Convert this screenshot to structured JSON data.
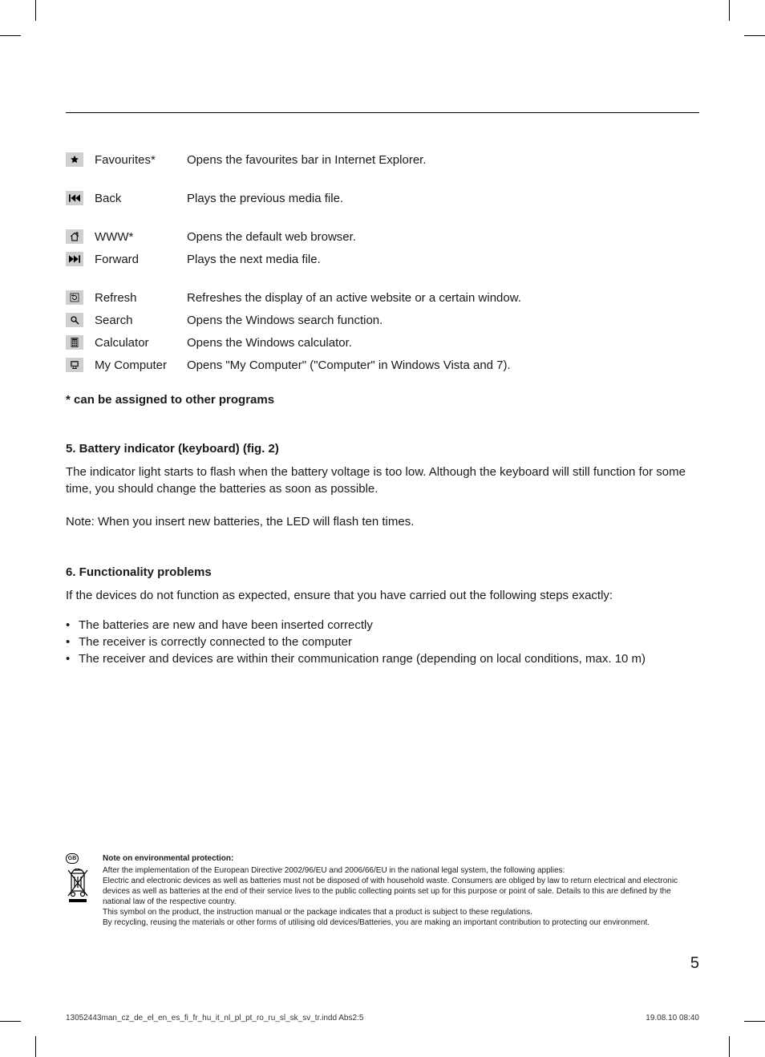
{
  "rows": [
    {
      "icon": "star",
      "label": "Favourites*",
      "desc": "Opens the favourites bar in Internet Explorer.",
      "gap": true
    },
    {
      "icon": "prev",
      "label": "Back",
      "desc": "Plays the previous media file.",
      "gap": true
    },
    {
      "icon": "home",
      "label": "WWW*",
      "desc": "Opens the default web browser.",
      "gap": false
    },
    {
      "icon": "next",
      "label": "Forward",
      "desc": "Plays the next media file.",
      "gap": true
    },
    {
      "icon": "refresh",
      "label": "Refresh",
      "desc": "Refreshes the display of an active website or a certain window.",
      "gap": false
    },
    {
      "icon": "search",
      "label": "Search",
      "desc": "Opens the Windows search function.",
      "gap": false
    },
    {
      "icon": "calc",
      "label": "Calculator",
      "desc": "Opens the Windows calculator.",
      "gap": false
    },
    {
      "icon": "pc",
      "label": "My Computer",
      "desc": "Opens \"My Computer\" (\"Computer\" in Windows Vista and 7).",
      "gap": false
    }
  ],
  "footnote": "* can be assigned to other programs",
  "section5": {
    "title": "5. Battery indicator (keyboard) (fig. 2)",
    "p1": "The indicator light starts to flash when the battery voltage is too low. Although the keyboard will still function for some time, you should change the batteries as soon as possible.",
    "p2": "Note: When you insert new batteries, the LED will flash ten times."
  },
  "section6": {
    "title": "6. Functionality problems",
    "intro": "If the devices do not function as expected, ensure that you have carried out the following steps exactly:",
    "bullets": [
      "The batteries are new and have been inserted correctly",
      "The receiver is correctly connected to the computer",
      "The receiver and devices are within their communication range (depending on local conditions, max. 10 m)"
    ]
  },
  "env": {
    "badge": "GB",
    "title": "Note on environmental protection:",
    "lines": [
      "After the implementation of the European Directive 2002/96/EU and 2006/66/EU in the national legal system, the following applies:",
      "Electric and electronic devices as well as batteries must not be disposed of with household waste. Consumers are obliged by law to return electrical and electronic devices as well as batteries at the end of their service lives to the public collecting points set up for this purpose or point of sale. Details to this are defined by the national law of the respective country.",
      "This symbol on the product, the instruction manual or the package indicates that a product is subject to these regulations.",
      "By recycling, reusing the materials or other forms of utilising old devices/Batteries, you are making an important contribution to protecting our environment."
    ]
  },
  "page_number": "5",
  "footer": {
    "left": "13052443man_cz_de_el_en_es_fi_fr_hu_it_nl_pl_pt_ro_ru_sl_sk_sv_tr.indd   Abs2:5",
    "right": "19.08.10   08:40"
  },
  "colors": {
    "icon_bg": "#cfcfcf",
    "icon_fg": "#000000"
  }
}
